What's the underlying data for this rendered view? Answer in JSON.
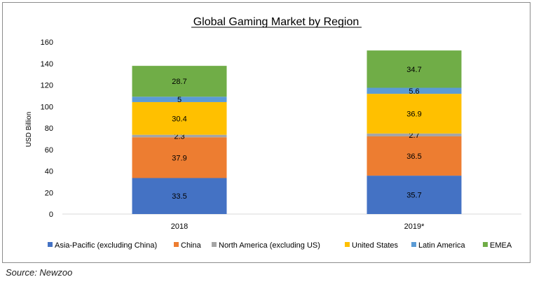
{
  "chart_data": {
    "type": "bar",
    "stacked": true,
    "title": "Global Gaming Market by Region",
    "xlabel": "",
    "ylabel": "USD Billion",
    "categories": [
      "2018",
      "2019*"
    ],
    "ylim": [
      0,
      160
    ],
    "yticks": [
      0,
      20,
      40,
      60,
      80,
      100,
      120,
      140,
      160
    ],
    "grid": false,
    "legend_position": "bottom",
    "series": [
      {
        "name": "Asia-Pacific (excluding China)",
        "values": [
          33.5,
          35.7
        ],
        "color": "#4472c4"
      },
      {
        "name": "China",
        "values": [
          37.9,
          36.5
        ],
        "color": "#ed7d31"
      },
      {
        "name": "North America (excluding US)",
        "values": [
          2.3,
          2.7
        ],
        "color": "#a5a5a5"
      },
      {
        "name": "United States",
        "values": [
          30.4,
          36.9
        ],
        "color": "#ffc000"
      },
      {
        "name": "Latin America",
        "values": [
          5,
          5.6
        ],
        "color": "#5b9bd5"
      },
      {
        "name": "EMEA",
        "values": [
          28.7,
          34.7
        ],
        "color": "#70ad47"
      }
    ],
    "data_labels": [
      [
        "33.5",
        "37.9",
        "2.3",
        "30.4",
        "5",
        "28.7"
      ],
      [
        "35.7",
        "36.5",
        "2.7",
        "36.9",
        "5.6",
        "34.7"
      ]
    ]
  },
  "source": "Source: Newzoo"
}
